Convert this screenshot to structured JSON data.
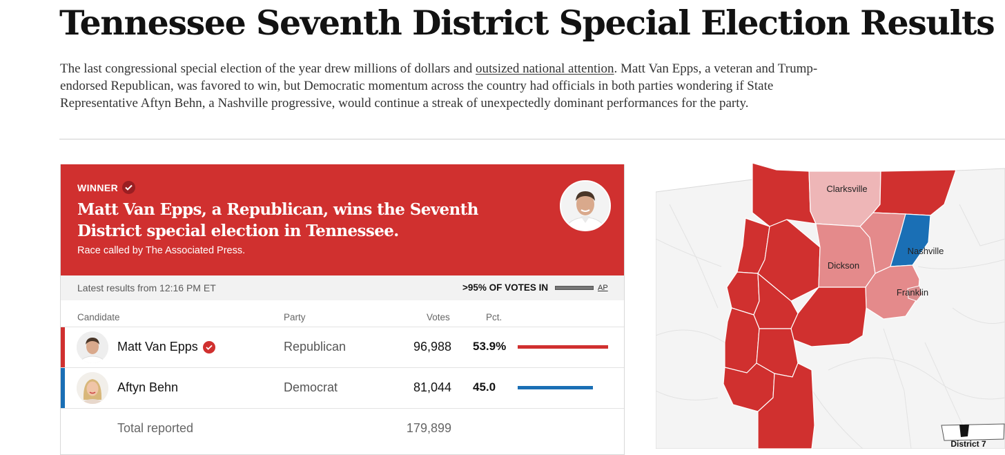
{
  "article": {
    "headline": "Tennessee Seventh District Special Election Results",
    "dek_before_link": "The last congressional special election of the year drew millions of dollars and ",
    "dek_link": "outsized national attention",
    "dek_after_link": ". Matt Van Epps, a veteran and Trump-endorsed Republican, was favored to win, but Democratic momentum across the country had officials in both parties wondering if State Representative Aftyn Behn, a Nashville progressive, would continue a streak of unexpectedly dominant performances for the party."
  },
  "result_card": {
    "winner_label": "WINNER",
    "title": "Matt Van Epps, a Republican, wins the Seventh District special election in Tennessee.",
    "called_by": "Race called by The Associated Press.",
    "latest_results": "Latest results from 12:16 PM ET",
    "votes_in": ">95% OF VOTES IN",
    "ap": "AP",
    "columns": {
      "candidate": "Candidate",
      "party": "Party",
      "votes": "Votes",
      "pct": "Pct."
    },
    "candidates": [
      {
        "name": "Matt Van Epps",
        "party": "Republican",
        "votes": "96,988",
        "pct": "53.9%",
        "pct_value": 53.9,
        "color": "#d0302f",
        "winner": true
      },
      {
        "name": "Aftyn Behn",
        "party": "Democrat",
        "votes": "81,044",
        "pct": "45.0",
        "pct_value": 45.0,
        "color": "#1a6fb5",
        "winner": false
      }
    ],
    "total_label": "Total reported",
    "total_votes": "179,899"
  },
  "map": {
    "labels": {
      "clarksville": "Clarksville",
      "nashville": "Nashville",
      "dickson": "Dickson",
      "franklin": "Franklin",
      "inset": "District 7"
    },
    "colors": {
      "strong_rep": "#d0302f",
      "light_rep": "#e48a8b",
      "lighter_rep": "#eeb6b7",
      "dem": "#1a6fb5",
      "background": "#f4f4f4"
    }
  }
}
